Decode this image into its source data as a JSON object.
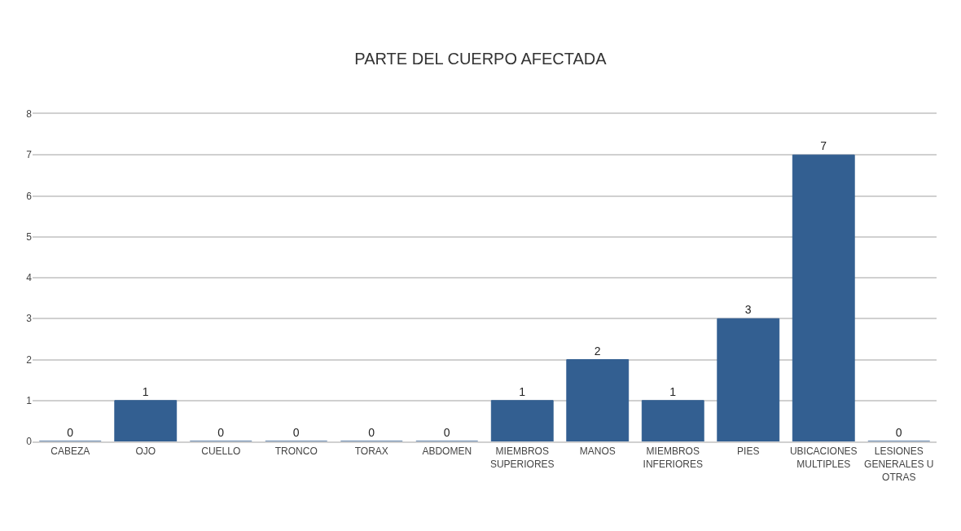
{
  "chart_data": {
    "type": "bar",
    "title": "PARTE DEL CUERPO AFECTADA",
    "categories": [
      "CABEZA",
      "OJO",
      "CUELLO",
      "TRONCO",
      "TORAX",
      "ABDOMEN",
      "MIEMBROS SUPERIORES",
      "MANOS",
      "MIEMBROS INFERIORES",
      "PIES",
      "UBICACIONES MULTIPLES",
      "LESIONES GENERALES U OTRAS"
    ],
    "values": [
      0,
      1,
      0,
      0,
      0,
      0,
      1,
      2,
      1,
      3,
      7,
      0
    ],
    "color": "#335f91",
    "ylim": [
      0,
      8
    ],
    "yticks": [
      0,
      1,
      2,
      3,
      4,
      5,
      6,
      7,
      8
    ],
    "grid": "y",
    "data_labels": true,
    "legend": false
  }
}
